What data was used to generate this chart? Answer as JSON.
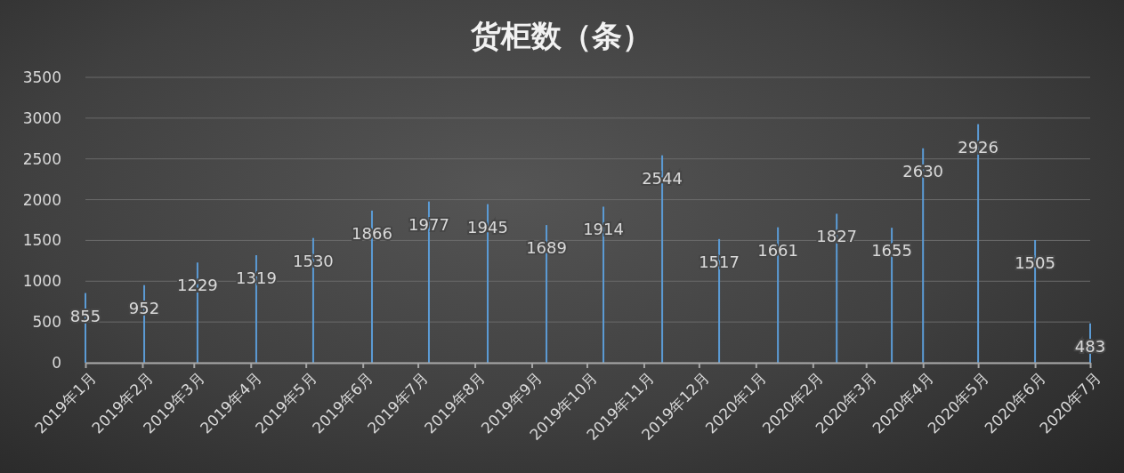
{
  "chart_data": {
    "type": "bar",
    "title": "货柜数（条）",
    "x": [
      "2019-01-01",
      "2019-02-02",
      "2019-03-03",
      "2019-04-04",
      "2019-05-05",
      "2019-06-06",
      "2019-07-07",
      "2019-08-08",
      "2019-09-09",
      "2019-10-10",
      "2019-11-11",
      "2019-12-12",
      "2020-01-13",
      "2020-02-14",
      "2020-03-15",
      "2020-04-01",
      "2020-05-01",
      "2020-06-01",
      "2020-07-01"
    ],
    "values": [
      855,
      952,
      1229,
      1319,
      1530,
      1866,
      1977,
      1945,
      1689,
      1914,
      2544,
      1517,
      1661,
      1827,
      1655,
      2630,
      2926,
      1505,
      483
    ],
    "color": "#5b9bd5",
    "xlim": [
      "2019-01-01",
      "2020-07-01"
    ],
    "xticks": [
      {
        "value": "2019-01",
        "label": "2019年1月"
      },
      {
        "value": "2019-02",
        "label": "2019年2月"
      },
      {
        "value": "2019-03",
        "label": "2019年3月"
      },
      {
        "value": "2019-04",
        "label": "2019年4月"
      },
      {
        "value": "2019-05",
        "label": "2019年5月"
      },
      {
        "value": "2019-06",
        "label": "2019年6月"
      },
      {
        "value": "2019-07",
        "label": "2019年7月"
      },
      {
        "value": "2019-08",
        "label": "2019年8月"
      },
      {
        "value": "2019-09",
        "label": "2019年9月"
      },
      {
        "value": "2019-10",
        "label": "2019年10月"
      },
      {
        "value": "2019-11",
        "label": "2019年11月"
      },
      {
        "value": "2019-12",
        "label": "2019年12月"
      },
      {
        "value": "2020-01",
        "label": "2020年1月"
      },
      {
        "value": "2020-02",
        "label": "2020年2月"
      },
      {
        "value": "2020-03",
        "label": "2020年3月"
      },
      {
        "value": "2020-04",
        "label": "2020年4月"
      },
      {
        "value": "2020-05",
        "label": "2020年5月"
      },
      {
        "value": "2020-06",
        "label": "2020年6月"
      },
      {
        "value": "2020-07",
        "label": "2020年7月"
      }
    ],
    "ylim": [
      0,
      3500
    ],
    "yticks": [
      0,
      500,
      1000,
      1500,
      2000,
      2500,
      3000,
      3500
    ],
    "grid": "y",
    "data_labels": true
  }
}
